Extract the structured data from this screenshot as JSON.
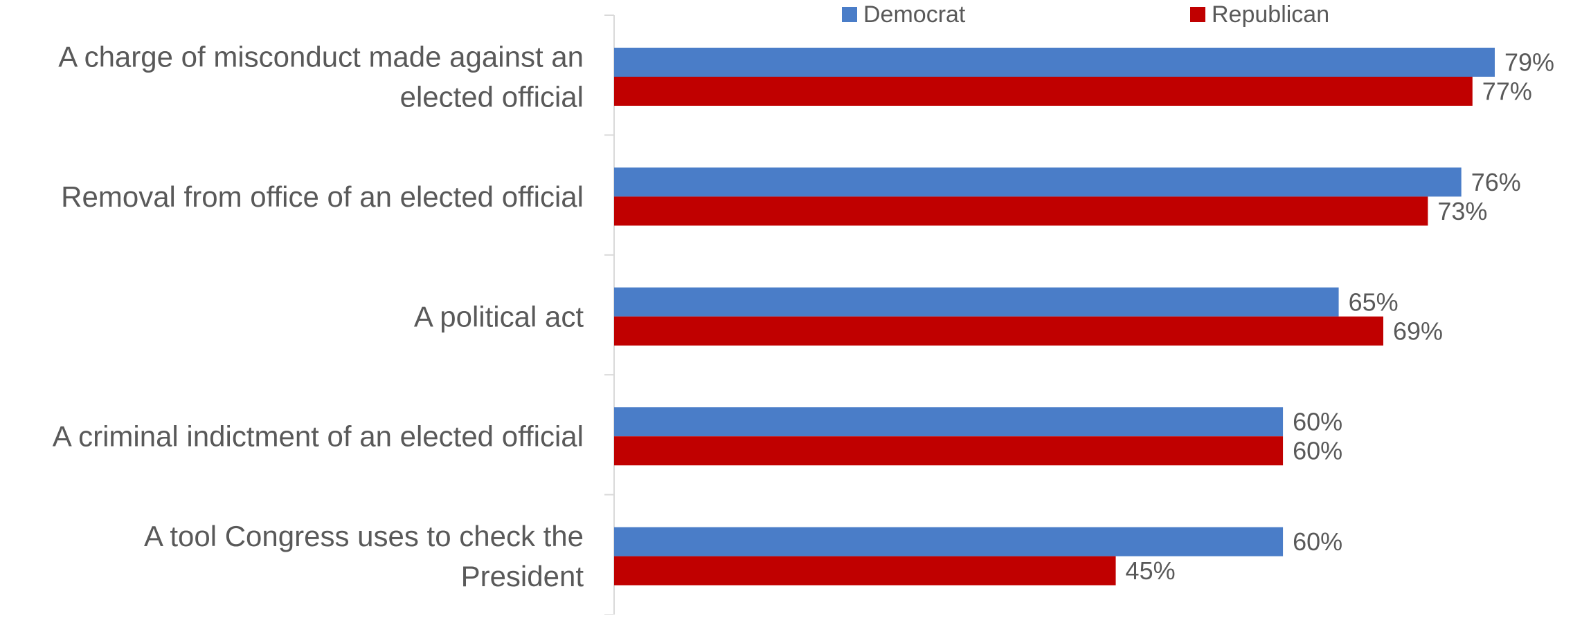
{
  "chart_data": {
    "type": "bar",
    "orientation": "horizontal",
    "categories": [
      [
        "A charge of misconduct made against an",
        "elected official"
      ],
      [
        "Removal from office of an elected official"
      ],
      [
        "A political act"
      ],
      [
        "A criminal indictment of an elected official"
      ],
      [
        "A tool Congress uses to check the",
        "President"
      ]
    ],
    "series": [
      {
        "name": "Democrat",
        "color": "#4a7dc8",
        "values": [
          79,
          76,
          65,
          60,
          60
        ],
        "labels": [
          "79%",
          "76%",
          "65%",
          "60%",
          "60%"
        ]
      },
      {
        "name": "Republican",
        "color": "#c00000",
        "values": [
          77,
          73,
          69,
          60,
          45
        ],
        "labels": [
          "77%",
          "73%",
          "69%",
          "60%",
          "45%"
        ]
      }
    ],
    "xlim": [
      0,
      79
    ],
    "grid": false,
    "legend_position": "top",
    "text_color": "#595959",
    "axis_color": "#d9d9d9"
  }
}
